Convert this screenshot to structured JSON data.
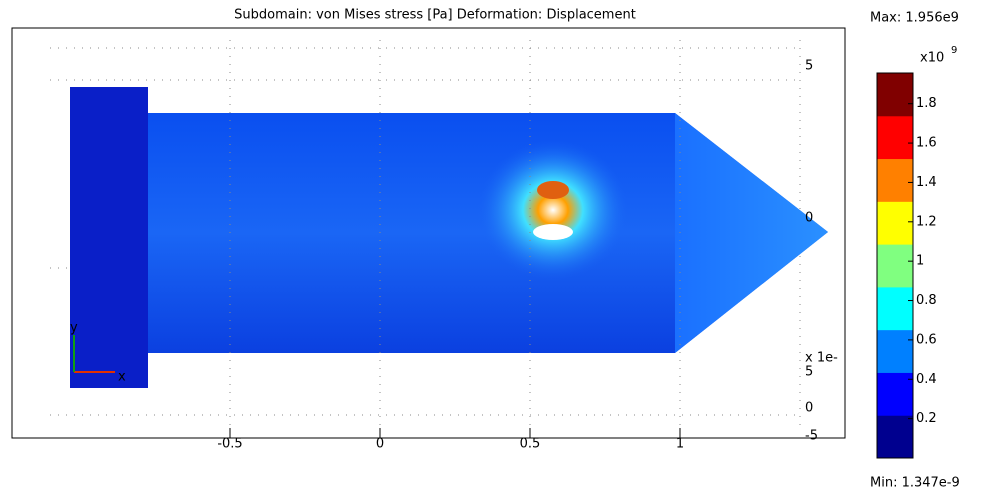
{
  "chart_data": {
    "type": "field",
    "title": "Subdomain: von Mises stress [Pa]    Deformation: Displacement",
    "max_label": "Max: 1.956e9",
    "min_label": "Min: 1.347e-9",
    "colorbar_multiplier": "x10",
    "colorbar_exponent": "9",
    "clim": [
      0,
      1.956
    ],
    "colorbar_ticks": [
      0.2,
      0.4,
      0.6,
      0.8,
      1,
      1.2,
      1.4,
      1.6,
      1.8
    ],
    "colormap": [
      "#00008f",
      "#0000ff",
      "#0080ff",
      "#00ffff",
      "#80ff80",
      "#ffff00",
      "#ff8000",
      "#ff0000",
      "#800000"
    ],
    "xticks": [
      {
        "value": -0.5,
        "label": "-0.5"
      },
      0,
      0.5,
      1
    ],
    "xlim": [
      -1,
      1.1
    ],
    "side_labels": [
      "5",
      "0",
      "x 1e-",
      "5",
      "0",
      "-5"
    ],
    "triad_labels": [
      "y",
      "x"
    ],
    "grid": true
  }
}
